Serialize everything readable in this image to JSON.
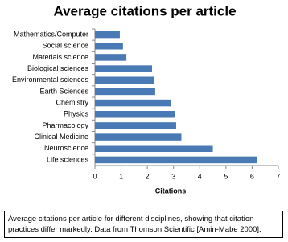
{
  "chart_data": {
    "type": "hbar",
    "title": "Average citations per article",
    "xlabel": "Citations",
    "categories": [
      "Mathematics/Computer",
      "Social science",
      "Materials science",
      "Biological sciences",
      "Environmental sciences",
      "Earth Sciences",
      "Chemistry",
      "Physics",
      "Pharmacology",
      "Clinical Medicine",
      "Neuroscience",
      "Life sciences"
    ],
    "values": [
      0.95,
      1.07,
      1.2,
      2.18,
      2.25,
      2.3,
      2.9,
      3.05,
      3.1,
      3.3,
      4.5,
      6.2
    ],
    "color": "#4a7ab5",
    "xlim": [
      0,
      7
    ],
    "xticks": [
      0,
      1,
      2,
      3,
      4,
      5,
      6,
      7
    ],
    "grid": false,
    "caption": "Average citations per article for different disciplines, showing that citation practices differ markedly. Data from Thomson Scientific [Amin-Mabe 2000]."
  }
}
